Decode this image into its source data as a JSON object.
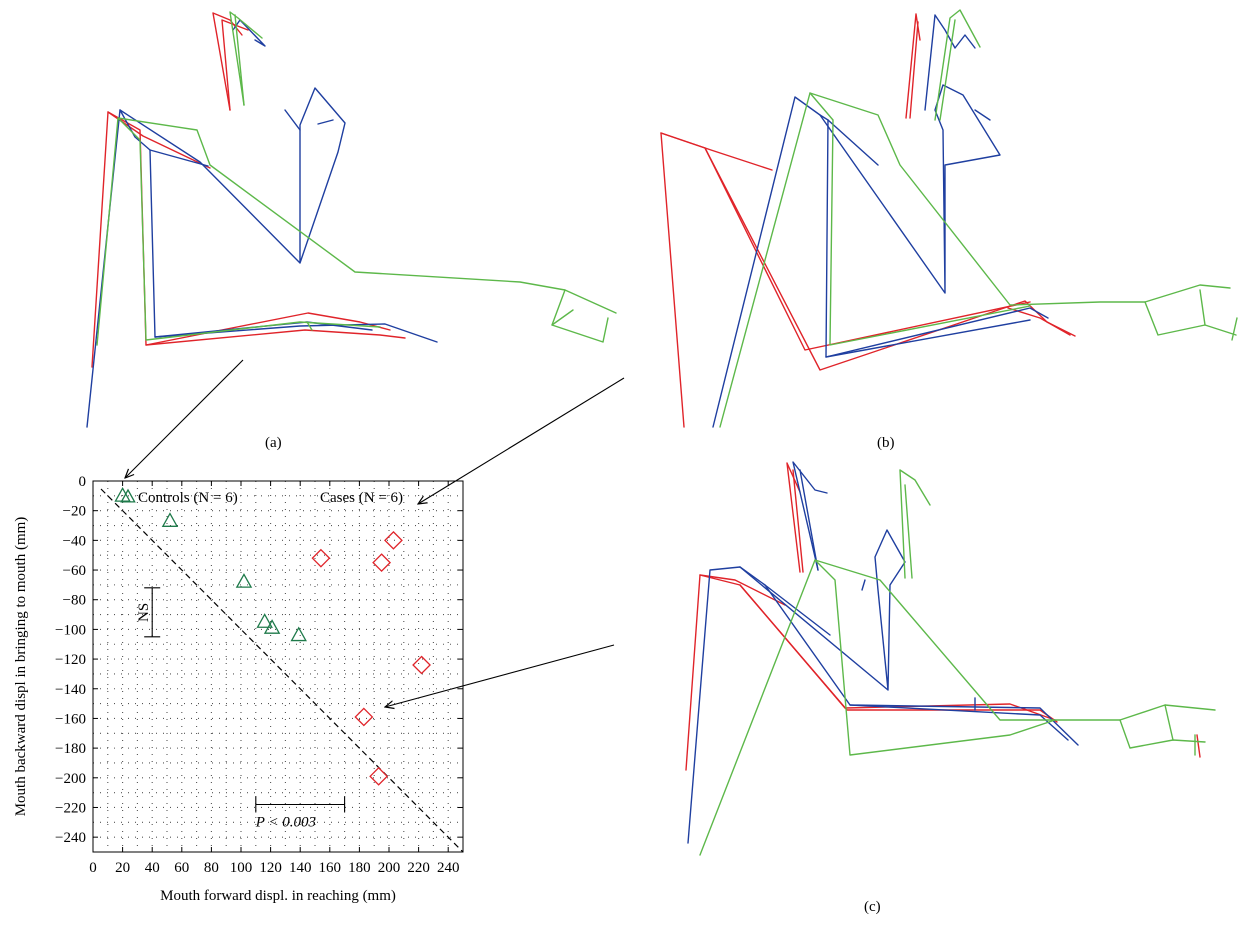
{
  "colors": {
    "controls": "#1e7a4a",
    "cases": "#e0242a",
    "stick_red": "#e0242a",
    "stick_blue": "#1f3fa0",
    "stick_green": "#5db84a"
  },
  "panels": {
    "a": "(a)",
    "b": "(b)",
    "c": "(c)"
  },
  "chart_data": {
    "type": "scatter",
    "xlabel": "Mouth forward displ. in reaching (mm)",
    "ylabel": "Mouth backward displ in bringing to mouth (mm)",
    "xlim": [
      0,
      250
    ],
    "ylim": [
      -250,
      0
    ],
    "x_ticks": [
      0,
      20,
      40,
      60,
      80,
      100,
      120,
      140,
      160,
      180,
      200,
      220,
      240
    ],
    "y_ticks": [
      0,
      -20,
      -40,
      -60,
      -80,
      -100,
      -120,
      -140,
      -160,
      -180,
      -200,
      -220,
      -240
    ],
    "grid": true,
    "series": [
      {
        "name": "Controls (N = 6)",
        "marker": "triangle",
        "x": [
          20,
          52,
          102,
          116,
          121,
          139
        ],
        "y": [
          -10,
          -27,
          -68,
          -95,
          -99,
          -104
        ]
      },
      {
        "name": "Cases (N = 6)",
        "marker": "diamond",
        "x": [
          154,
          195,
          203,
          222,
          183,
          193
        ],
        "y": [
          -52,
          -55,
          -40,
          -124,
          -159,
          -199
        ]
      }
    ],
    "reference_line": {
      "x": [
        0,
        250
      ],
      "y": [
        0,
        -250
      ]
    },
    "annotations": {
      "ns_label": "NS",
      "ns_range": {
        "x": 40,
        "y": [
          -72,
          -105
        ]
      },
      "p_label": "P < 0.003",
      "p_range": {
        "y": -218,
        "x": [
          110,
          170
        ]
      }
    }
  }
}
